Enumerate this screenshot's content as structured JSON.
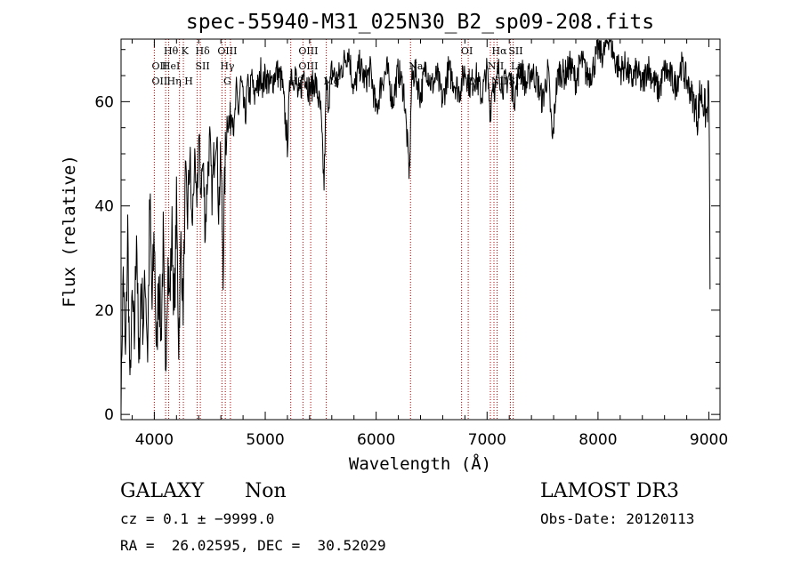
{
  "chart_data": {
    "type": "line",
    "title": "spec-55940-M31_025N30_B2_sp09-208.fits",
    "xlabel": "Wavelength (Å)",
    "ylabel": "Flux (relative)",
    "xlim": [
      3700,
      9100
    ],
    "ylim": [
      -1,
      72
    ],
    "xticks": [
      4000,
      5000,
      6000,
      7000,
      8000,
      9000
    ],
    "yticks": [
      0,
      20,
      40,
      60
    ],
    "grid": false,
    "series": [
      {
        "color": "#000000",
        "x": [
          3700,
          3720,
          3740,
          3760,
          3780,
          3800,
          3820,
          3840,
          3860,
          3880,
          3900,
          3920,
          3940,
          3960,
          3980,
          4000,
          4020,
          4040,
          4060,
          4080,
          4100,
          4120,
          4140,
          4160,
          4180,
          4200,
          4220,
          4240,
          4260,
          4280,
          4300,
          4320,
          4340,
          4360,
          4380,
          4400,
          4420,
          4440,
          4460,
          4480,
          4500,
          4520,
          4540,
          4560,
          4580,
          4600,
          4620,
          4640,
          4660,
          4680,
          4700,
          4720,
          4740,
          4760,
          4780,
          4800,
          4820,
          4840,
          4860,
          4880,
          4900,
          4920,
          4940,
          4960,
          4980,
          5000,
          5050,
          5100,
          5150,
          5200,
          5230,
          5250,
          5270,
          5300,
          5350,
          5400,
          5450,
          5500,
          5530,
          5550,
          5570,
          5600,
          5650,
          5700,
          5750,
          5800,
          5850,
          5900,
          5950,
          6000,
          6050,
          6100,
          6150,
          6200,
          6250,
          6300,
          6320,
          6350,
          6400,
          6450,
          6500,
          6550,
          6600,
          6650,
          6700,
          6750,
          6800,
          6850,
          6900,
          6950,
          7000,
          7030,
          7050,
          7080,
          7100,
          7150,
          7200,
          7250,
          7300,
          7350,
          7400,
          7450,
          7500,
          7550,
          7590,
          7620,
          7650,
          7700,
          7750,
          7800,
          7850,
          7900,
          7950,
          8000,
          8050,
          8100,
          8150,
          8200,
          8250,
          8300,
          8350,
          8400,
          8450,
          8500,
          8550,
          8600,
          8650,
          8700,
          8750,
          8800,
          8850,
          8900,
          8920,
          8950,
          8980,
          9000,
          9010
        ],
        "y": [
          3,
          28,
          10,
          35,
          5,
          22,
          14,
          38,
          8,
          25,
          18,
          26,
          12,
          40,
          20,
          35,
          10,
          28,
          15,
          33,
          6,
          30,
          22,
          36,
          18,
          40,
          14,
          33,
          20,
          45,
          38,
          50,
          35,
          48,
          40,
          52,
          44,
          48,
          36,
          46,
          52,
          42,
          50,
          55,
          40,
          48,
          30,
          50,
          58,
          55,
          60,
          54,
          62,
          58,
          64,
          60,
          57,
          63,
          61,
          65,
          60,
          64,
          62,
          66,
          63,
          65,
          63,
          66,
          64,
          52,
          67,
          64,
          66,
          60,
          66,
          62,
          64,
          58,
          44,
          63,
          60,
          66,
          64,
          67,
          70,
          62,
          67,
          64,
          66,
          58,
          64,
          66,
          60,
          66,
          62,
          46,
          64,
          66,
          61,
          67,
          63,
          65,
          60,
          66,
          64,
          62,
          66,
          63,
          65,
          61,
          66,
          58,
          64,
          62,
          66,
          63,
          65,
          61,
          67,
          63,
          66,
          64,
          60,
          66,
          52,
          62,
          66,
          65,
          67,
          64,
          68,
          65,
          66,
          70,
          69,
          73,
          68,
          66,
          67,
          64,
          66,
          63,
          67,
          64,
          62,
          66,
          65,
          63,
          67,
          64,
          61,
          57,
          62,
          60,
          57,
          63,
          24
        ],
        "noise": [
          2,
          6,
          4,
          8,
          3,
          5,
          6,
          9,
          4,
          6,
          7,
          5,
          6,
          9,
          8,
          7,
          5,
          8,
          6,
          7,
          5,
          8,
          6,
          5,
          7,
          6,
          6,
          5,
          4,
          5,
          5,
          6,
          4,
          5,
          4,
          6,
          5,
          5,
          6,
          4,
          5,
          4,
          5,
          4,
          6,
          6,
          7,
          5,
          4,
          4,
          4,
          3,
          3,
          3,
          3,
          3,
          3,
          3,
          3,
          3,
          3,
          3,
          3,
          3,
          3,
          3,
          3,
          3,
          3,
          3,
          3,
          3,
          3,
          3,
          3,
          3,
          3,
          3,
          3,
          3,
          3,
          3,
          3,
          3,
          3,
          3,
          3,
          3,
          3,
          3,
          3,
          3,
          3,
          3,
          3,
          3,
          3,
          3,
          3,
          3,
          3,
          3,
          3,
          3,
          3,
          3,
          3,
          3,
          3,
          3,
          3,
          3,
          3,
          3,
          3,
          3,
          3,
          3,
          3,
          3,
          3,
          3,
          3,
          3,
          3,
          3,
          3,
          3,
          3,
          3,
          3,
          3,
          3,
          3,
          3,
          3,
          3,
          3,
          3,
          3,
          3,
          3,
          3,
          3,
          3,
          3,
          3,
          3,
          3,
          3,
          3,
          4,
          4,
          4,
          4,
          4,
          4
        ]
      }
    ],
    "lines": [
      {
        "x": 4000,
        "labels": [
          {
            "text": "OII",
            "row": 1
          },
          {
            "text": "OII",
            "row": 2
          }
        ]
      },
      {
        "x": 4102,
        "labels": [
          {
            "text": "Hθ",
            "row": 0
          },
          {
            "text": "HeI",
            "row": 1
          }
        ]
      },
      {
        "x": 4130,
        "labels": [
          {
            "text": "Hη",
            "row": 2
          }
        ]
      },
      {
        "x": 4227,
        "labels": [
          {
            "text": "K",
            "row": 0
          }
        ]
      },
      {
        "x": 4262,
        "labels": [
          {
            "text": "H",
            "row": 2
          }
        ]
      },
      {
        "x": 4387,
        "labels": [
          {
            "text": "Hδ",
            "row": 0
          },
          {
            "text": "SII",
            "row": 1
          }
        ]
      },
      {
        "x": 4415,
        "labels": []
      },
      {
        "x": 4610,
        "labels": [
          {
            "text": "OIII",
            "row": 0
          },
          {
            "text": "Hγ",
            "row": 1
          },
          {
            "text": "G",
            "row": 2
          }
        ]
      },
      {
        "x": 4640,
        "labels": []
      },
      {
        "x": 4686,
        "labels": []
      },
      {
        "x": 5230,
        "labels": [
          {
            "text": "Hβ",
            "row": 2
          }
        ]
      },
      {
        "x": 5340,
        "labels": [
          {
            "text": "OIII",
            "row": 0
          },
          {
            "text": "OIII",
            "row": 1
          }
        ]
      },
      {
        "x": 5410,
        "labels": []
      },
      {
        "x": 5550,
        "labels": [
          {
            "text": "Mg",
            "row": 2
          }
        ]
      },
      {
        "x": 6310,
        "labels": [
          {
            "text": "Na",
            "row": 1
          }
        ]
      },
      {
        "x": 6770,
        "labels": [
          {
            "text": "OI",
            "row": 0
          }
        ]
      },
      {
        "x": 6830,
        "labels": [
          {
            "text": "OI",
            "row": 2
          }
        ]
      },
      {
        "x": 7030,
        "labels": [
          {
            "text": "NII",
            "row": 1
          }
        ]
      },
      {
        "x": 7062,
        "labels": [
          {
            "text": "Hα",
            "row": 0
          },
          {
            "text": "NII",
            "row": 2
          }
        ]
      },
      {
        "x": 7090,
        "labels": []
      },
      {
        "x": 7210,
        "labels": [
          {
            "text": "SII",
            "row": 0
          },
          {
            "text": "Li",
            "row": 1
          },
          {
            "text": "SII",
            "row": 2
          }
        ]
      },
      {
        "x": 7235,
        "labels": []
      }
    ]
  },
  "footer": {
    "object_class": "GALAXY",
    "subclass": "Non",
    "survey": "LAMOST DR3",
    "redshift": "cz = 0.1 ± −9999.0",
    "obs_date": "Obs-Date: 20120113",
    "coordinates": "RA =  26.02595, DEC =  30.52029"
  }
}
